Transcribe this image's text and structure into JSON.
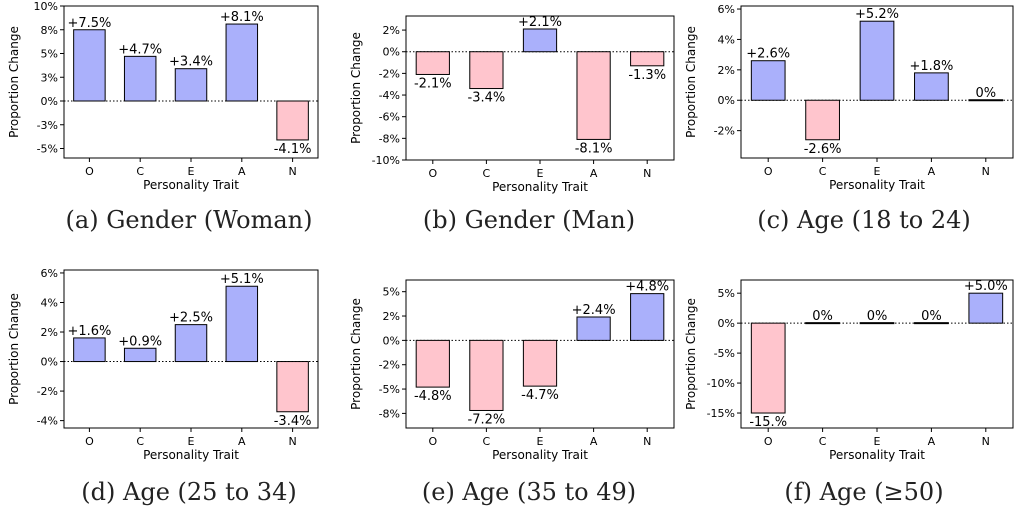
{
  "chart_data": [
    {
      "type": "bar",
      "caption": "(a) Gender (Woman)",
      "categories": [
        "O",
        "C",
        "E",
        "A",
        "N"
      ],
      "values": [
        7.5,
        4.7,
        3.4,
        8.1,
        -4.1
      ],
      "labels": [
        "+7.5%",
        "+4.7%",
        "+3.4%",
        "+8.1%",
        "-4.1%"
      ],
      "xlabel": "Personality Trait",
      "ylabel": "Proportion Change",
      "ylim": [
        -6,
        10
      ],
      "yticks": [
        -5,
        -2.5,
        0,
        2.5,
        5,
        7.5,
        10
      ],
      "yticklabels": [
        "-5%",
        "-3%",
        "0%",
        "3%",
        "5%",
        "8%",
        "10%"
      ]
    },
    {
      "type": "bar",
      "caption": "(b) Gender (Man)",
      "categories": [
        "O",
        "C",
        "E",
        "A",
        "N"
      ],
      "values": [
        -2.1,
        -3.4,
        2.1,
        -8.1,
        -1.3
      ],
      "labels": [
        "-2.1%",
        "-3.4%",
        "+2.1%",
        "-8.1%",
        "-1.3%"
      ],
      "xlabel": "Personality Trait",
      "ylabel": "Proportion Change",
      "ylim": [
        -10,
        3.3
      ],
      "yticks": [
        -10,
        -8,
        -6,
        -4,
        -2,
        0,
        2
      ],
      "yticklabels": [
        "-10%",
        "-8%",
        "-6%",
        "-4%",
        "-2%",
        "0%",
        "2%"
      ]
    },
    {
      "type": "bar",
      "caption": "(c) Age (18 to 24)",
      "categories": [
        "O",
        "C",
        "E",
        "A",
        "N"
      ],
      "values": [
        2.6,
        -2.6,
        5.2,
        1.8,
        0
      ],
      "labels": [
        "+2.6%",
        "-2.6%",
        "+5.2%",
        "+1.8%",
        "0%"
      ],
      "xlabel": "Personality Trait",
      "ylabel": "Proportion Change",
      "ylim": [
        -3.8,
        6.2
      ],
      "yticks": [
        -2,
        0,
        2,
        4,
        6
      ],
      "yticklabels": [
        "-2%",
        "0%",
        "2%",
        "4%",
        "6%"
      ]
    },
    {
      "type": "bar",
      "caption": "(d) Age (25 to 34)",
      "categories": [
        "O",
        "C",
        "E",
        "A",
        "N"
      ],
      "values": [
        1.6,
        0.9,
        2.5,
        5.1,
        -3.4
      ],
      "labels": [
        "+1.6%",
        "+0.9%",
        "+2.5%",
        "+5.1%",
        "-3.4%"
      ],
      "xlabel": "Personality Trait",
      "ylabel": "Proportion Change",
      "ylim": [
        -4.5,
        6.2
      ],
      "yticks": [
        -4,
        -2,
        0,
        2,
        4,
        6
      ],
      "yticklabels": [
        "-4%",
        "-2%",
        "0%",
        "2%",
        "4%",
        "6%"
      ]
    },
    {
      "type": "bar",
      "caption": "(e) Age (35 to 49)",
      "categories": [
        "O",
        "C",
        "E",
        "A",
        "N"
      ],
      "values": [
        -4.8,
        -7.2,
        -4.7,
        2.4,
        4.8
      ],
      "labels": [
        "-4.8%",
        "-7.2%",
        "-4.7%",
        "+2.4%",
        "+4.8%"
      ],
      "xlabel": "Personality Trait",
      "ylabel": "Proportion Change",
      "ylim": [
        -9,
        6.2
      ],
      "yticks": [
        -7.5,
        -5,
        -2.5,
        0,
        2.5,
        5
      ],
      "yticklabels": [
        "-8%",
        "-5%",
        "-2%",
        "0%",
        "2%",
        "5%"
      ]
    },
    {
      "type": "bar",
      "caption": "(f) Age (≥50)",
      "categories": [
        "O",
        "C",
        "E",
        "A",
        "N"
      ],
      "values": [
        -15,
        0,
        0,
        0,
        5
      ],
      "labels": [
        "-15.%",
        "0%",
        "0%",
        "0%",
        "+5.0%"
      ],
      "xlabel": "Personality Trait",
      "ylabel": "Proportion Change",
      "ylim": [
        -17.5,
        7.2
      ],
      "yticks": [
        -15,
        -10,
        -5,
        0,
        5
      ],
      "yticklabels": [
        "-15%",
        "-10%",
        "-5%",
        "0%",
        "5%"
      ]
    }
  ],
  "colors": {
    "positive_fill": "#aab0fb",
    "negative_fill": "#ffc5cd",
    "bar_edge": "#000000",
    "zero_line": "#000000"
  }
}
